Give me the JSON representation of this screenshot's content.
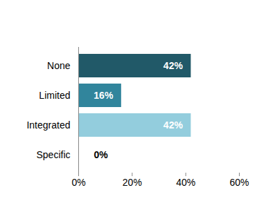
{
  "chart_data": {
    "type": "bar",
    "orientation": "horizontal",
    "categories": [
      "None",
      "Limited",
      "Integrated",
      "Specific"
    ],
    "values": [
      42,
      16,
      42,
      0
    ],
    "value_labels": [
      "42%",
      "16%",
      "42%",
      "0%"
    ],
    "data_labels": true,
    "colors": [
      "#215968",
      "#31859c",
      "#93cddd",
      "#93cddd"
    ],
    "xlim": [
      0,
      60
    ],
    "xticks": [
      {
        "value": 0,
        "label": "0%"
      },
      {
        "value": 20,
        "label": "20%"
      },
      {
        "value": 40,
        "label": "40%"
      },
      {
        "value": 60,
        "label": "60%"
      }
    ],
    "grid": false
  }
}
